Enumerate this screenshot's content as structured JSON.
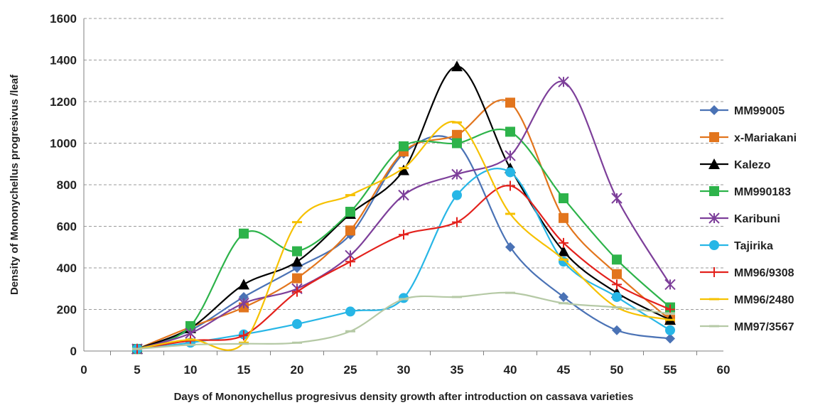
{
  "chart_data": {
    "type": "line",
    "title": "",
    "xlabel": "Days of Mononychellus progresivus density growth after introduction on cassava varieties",
    "ylabel": "Density of Mononychellus progresivus /leaf",
    "xlim": [
      0,
      60
    ],
    "ylim": [
      0,
      1600
    ],
    "x_ticks": [
      0,
      5,
      10,
      15,
      20,
      25,
      30,
      35,
      40,
      45,
      50,
      55,
      60
    ],
    "y_ticks": [
      0,
      200,
      400,
      600,
      800,
      1000,
      1200,
      1400,
      1600
    ],
    "grid": "horizontal-dashed",
    "legend_position": "right",
    "x": [
      5,
      10,
      15,
      20,
      25,
      30,
      35,
      40,
      45,
      50,
      55
    ],
    "series": [
      {
        "name": "MM99005",
        "color": "#4a72b5",
        "marker": "diamond",
        "values": [
          10,
          100,
          260,
          400,
          560,
          950,
          1000,
          500,
          260,
          100,
          60
        ]
      },
      {
        "name": "x-Mariakani",
        "color": "#e2751d",
        "marker": "square",
        "values": [
          10,
          115,
          210,
          350,
          580,
          960,
          1040,
          1195,
          640,
          370,
          150
        ]
      },
      {
        "name": "Kalezo",
        "color": "#000000",
        "marker": "triangle",
        "values": [
          10,
          110,
          320,
          430,
          660,
          870,
          1370,
          880,
          480,
          280,
          150
        ]
      },
      {
        "name": "MM990183",
        "color": "#2db34a",
        "marker": "square",
        "values": [
          10,
          120,
          565,
          480,
          670,
          985,
          1000,
          1055,
          735,
          440,
          210
        ]
      },
      {
        "name": "Karibuni",
        "color": "#7d3f9a",
        "marker": "star",
        "values": [
          10,
          85,
          230,
          300,
          460,
          750,
          850,
          940,
          1295,
          735,
          320
        ]
      },
      {
        "name": "Tajirika",
        "color": "#27b6e6",
        "marker": "circle",
        "values": [
          10,
          40,
          80,
          130,
          190,
          255,
          750,
          860,
          430,
          260,
          100
        ]
      },
      {
        "name": "MM96/9308",
        "color": "#e3211c",
        "marker": "plus",
        "values": [
          10,
          50,
          75,
          285,
          430,
          560,
          620,
          795,
          520,
          320,
          200
        ]
      },
      {
        "name": "MM96/2480",
        "color": "#f6c100",
        "marker": "dash",
        "values": [
          10,
          55,
          40,
          620,
          750,
          880,
          1100,
          660,
          440,
          210,
          150
        ]
      },
      {
        "name": "MM97/3567",
        "color": "#b5c9a5",
        "marker": "dash",
        "values": [
          10,
          30,
          35,
          40,
          95,
          250,
          260,
          280,
          230,
          210,
          180
        ]
      }
    ]
  }
}
